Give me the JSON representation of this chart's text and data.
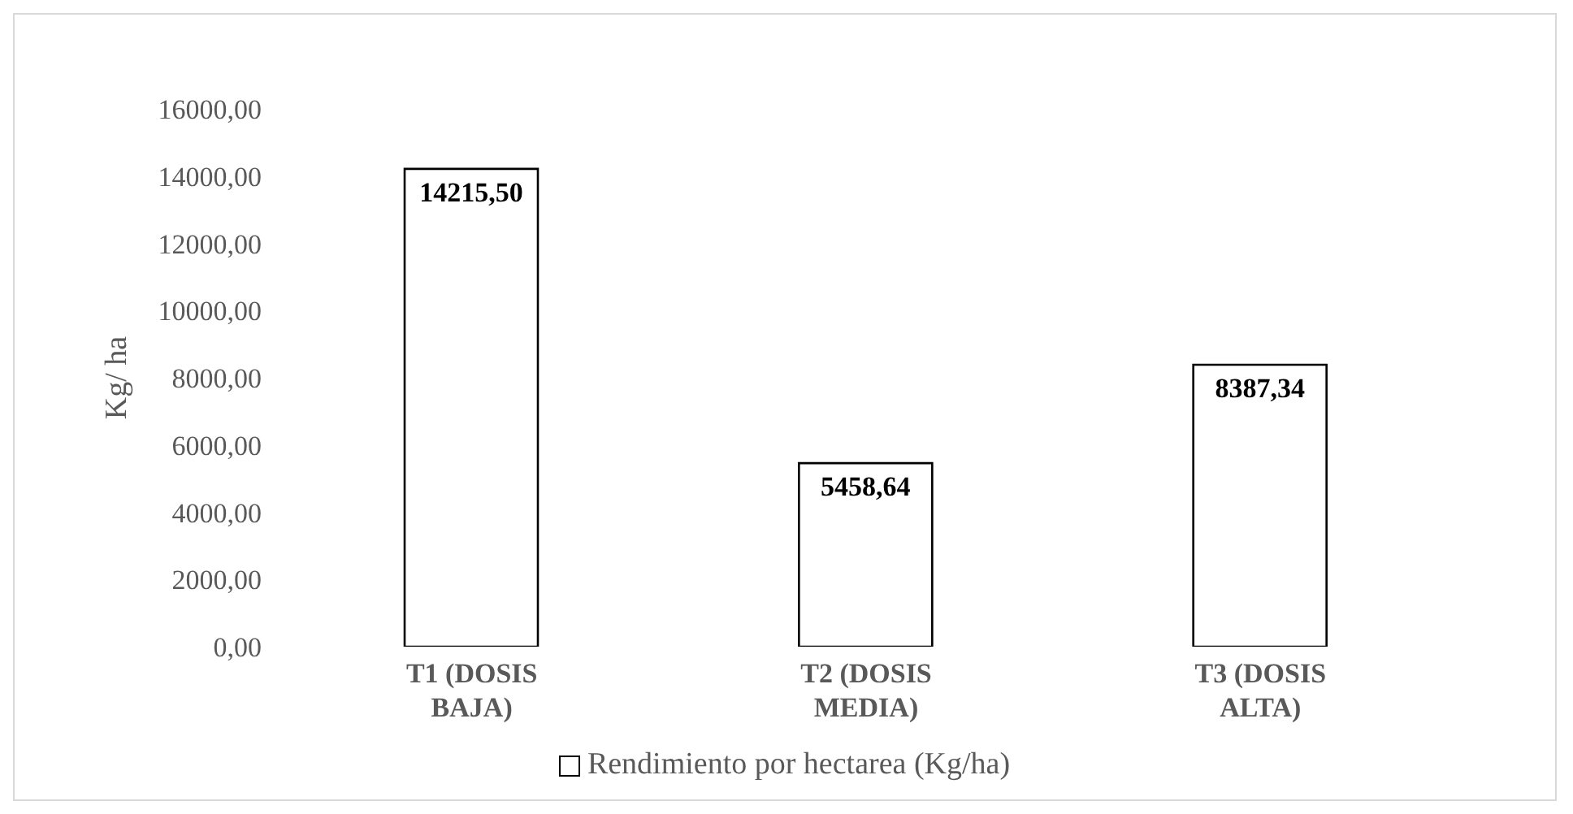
{
  "chart_data": {
    "type": "bar",
    "categories": [
      "T1 (DOSIS BAJA)",
      "T2 (DOSIS MEDIA)",
      "T3 (DOSIS ALTA)"
    ],
    "series": [
      {
        "name": "Rendimiento por hectarea (Kg/ha)",
        "color": "#ffffff",
        "values": [
          14215.5,
          5458.64,
          8387.34
        ],
        "value_labels": [
          "14215,50",
          "5458,64",
          "8387,34"
        ]
      }
    ],
    "ylabel": "Kg/ ha",
    "ylim": [
      0,
      16000
    ],
    "yticks": [
      {
        "value": 0,
        "label": "0,00"
      },
      {
        "value": 2000,
        "label": "2000,00"
      },
      {
        "value": 4000,
        "label": "4000,00"
      },
      {
        "value": 6000,
        "label": "6000,00"
      },
      {
        "value": 8000,
        "label": "8000,00"
      },
      {
        "value": 10000,
        "label": "10000,00"
      },
      {
        "value": 12000,
        "label": "12000,00"
      },
      {
        "value": 14000,
        "label": "14000,00"
      },
      {
        "value": 16000,
        "label": "16000,00"
      }
    ],
    "grid": false,
    "legend": "bottom"
  }
}
